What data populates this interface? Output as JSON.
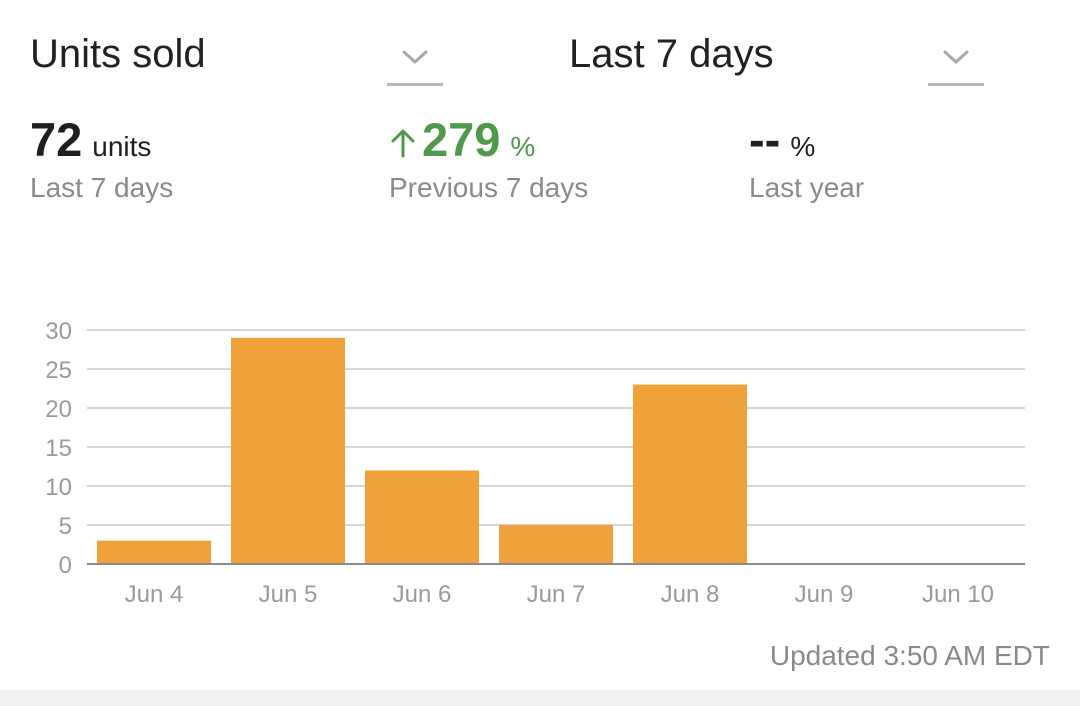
{
  "header": {
    "metric_selector": {
      "label": "Units sold"
    },
    "range_selector": {
      "label": "Last 7 days"
    }
  },
  "stats": {
    "current": {
      "value": "72",
      "unit": "units",
      "caption": "Last 7 days"
    },
    "previous": {
      "value": "279",
      "unit": "%",
      "caption": "Previous 7 days",
      "direction": "up",
      "color": "#4f9a4a"
    },
    "last_year": {
      "value": "--",
      "unit": "%",
      "caption": "Last year"
    }
  },
  "chart_data": {
    "type": "bar",
    "categories": [
      "Jun 4",
      "Jun 5",
      "Jun 6",
      "Jun 7",
      "Jun 8",
      "Jun 9",
      "Jun 10"
    ],
    "values": [
      3,
      29,
      12,
      5,
      23,
      0,
      0
    ],
    "ylim": [
      0,
      30
    ],
    "yticks": [
      0,
      5,
      10,
      15,
      20,
      25,
      30
    ],
    "grid": true,
    "bar_color": "#f0a23a"
  },
  "footer": {
    "updated": "Updated 3:50 AM EDT"
  }
}
